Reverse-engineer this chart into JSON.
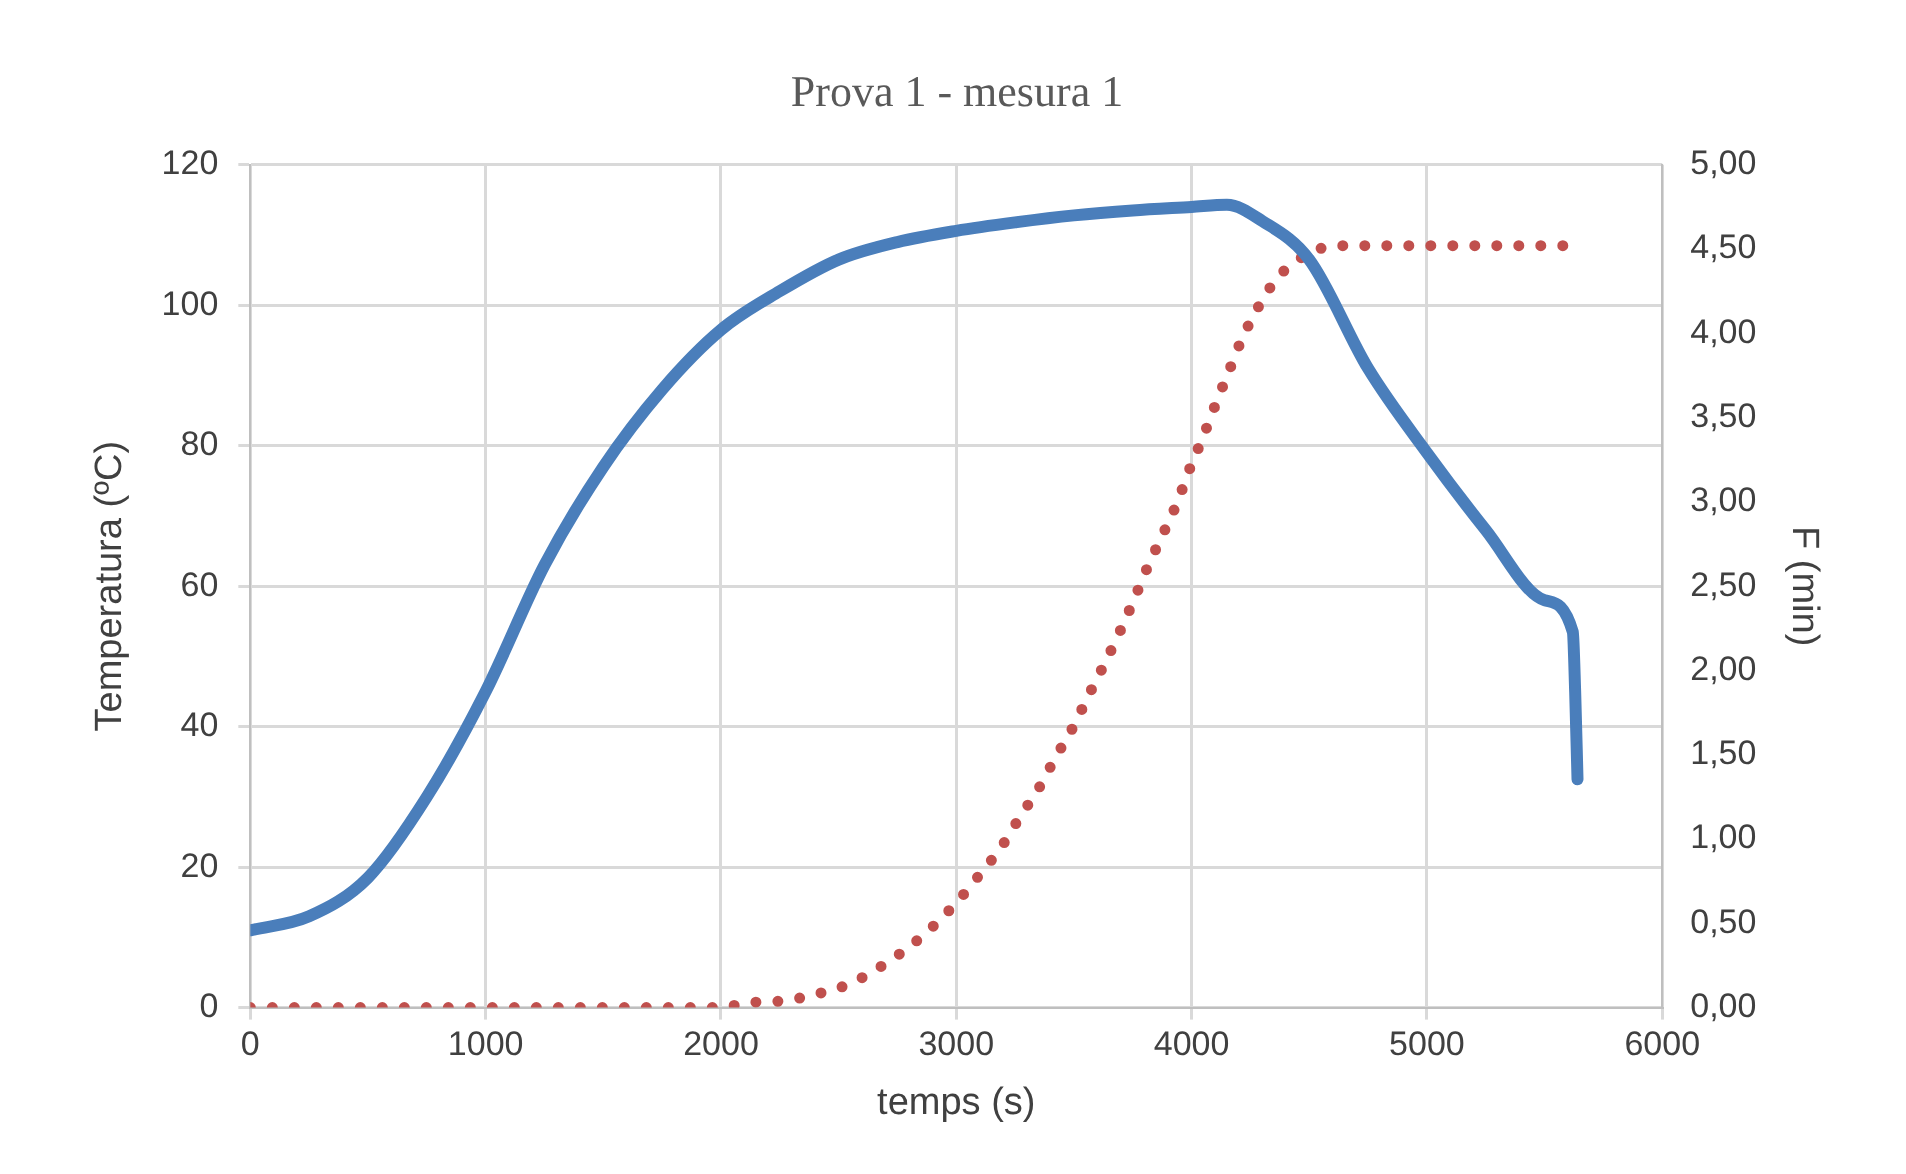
{
  "chart_data": {
    "type": "line",
    "title": "Prova 1 - mesura 1",
    "xlabel": "temps (s)",
    "ylabel": "Temperatura (ºC)",
    "y2label": "F (min)",
    "xlim": [
      0,
      6000
    ],
    "xticks": [
      0,
      1000,
      2000,
      3000,
      4000,
      5000,
      6000
    ],
    "ylim": [
      0,
      120
    ],
    "yticks": [
      0,
      20,
      40,
      60,
      80,
      100,
      120
    ],
    "y2lim": [
      0,
      5
    ],
    "y2ticks": [
      {
        "value": 0,
        "label": "0,00"
      },
      {
        "value": 0.5,
        "label": "0,50"
      },
      {
        "value": 1,
        "label": "1,00"
      },
      {
        "value": 1.5,
        "label": "1,50"
      },
      {
        "value": 2,
        "label": "2,00"
      },
      {
        "value": 2.5,
        "label": "2,50"
      },
      {
        "value": 3,
        "label": "3,00"
      },
      {
        "value": 3.5,
        "label": "3,50"
      },
      {
        "value": 4,
        "label": "4,00"
      },
      {
        "value": 4.5,
        "label": "4,50"
      },
      {
        "value": 5,
        "label": "5,00"
      }
    ],
    "grid": true,
    "legend": false,
    "marker": "none",
    "series": [
      {
        "color": "#4a7ebb",
        "line_style": "solid",
        "x": [
          0,
          250,
          500,
          750,
          1000,
          1250,
          1500,
          1750,
          2000,
          2250,
          2500,
          2750,
          3000,
          3250,
          3500,
          3750,
          4000,
          4150,
          4300,
          4500,
          4750,
          5000,
          5250,
          5500,
          5620,
          5630,
          5640
        ],
        "values": [
          11,
          13,
          18.5,
          30,
          45,
          63,
          77,
          88,
          96.5,
          102,
          106.5,
          109,
          110.6,
          111.8,
          112.8,
          113.5,
          114,
          114.3,
          112,
          106.5,
          91,
          79,
          68,
          58,
          53.5,
          45,
          32.5
        ]
      },
      {
        "color": "#c0504d",
        "line_style": "dotted",
        "axis": "y2",
        "x": [
          0,
          500,
          1000,
          1500,
          1985,
          2125,
          2265,
          2405,
          2545,
          2675,
          2790,
          2900,
          3005,
          3100,
          3190,
          3270,
          3350,
          3420,
          3495,
          3565,
          3630,
          3695,
          3755,
          3815,
          3875,
          3940,
          3990,
          4050,
          4105,
          4160,
          4215,
          4285,
          4365,
          4480,
          4615,
          5000,
          5610
        ],
        "values": [
          0,
          0,
          0,
          0,
          0,
          0.03,
          0.04,
          0.08,
          0.14,
          0.24,
          0.35,
          0.48,
          0.63,
          0.79,
          0.95,
          1.13,
          1.3,
          1.48,
          1.66,
          1.86,
          2.04,
          2.23,
          2.42,
          2.62,
          2.8,
          3,
          3.19,
          3.39,
          3.59,
          3.78,
          3.97,
          4.16,
          4.33,
          4.46,
          4.52,
          4.52,
          4.52
        ]
      }
    ]
  }
}
